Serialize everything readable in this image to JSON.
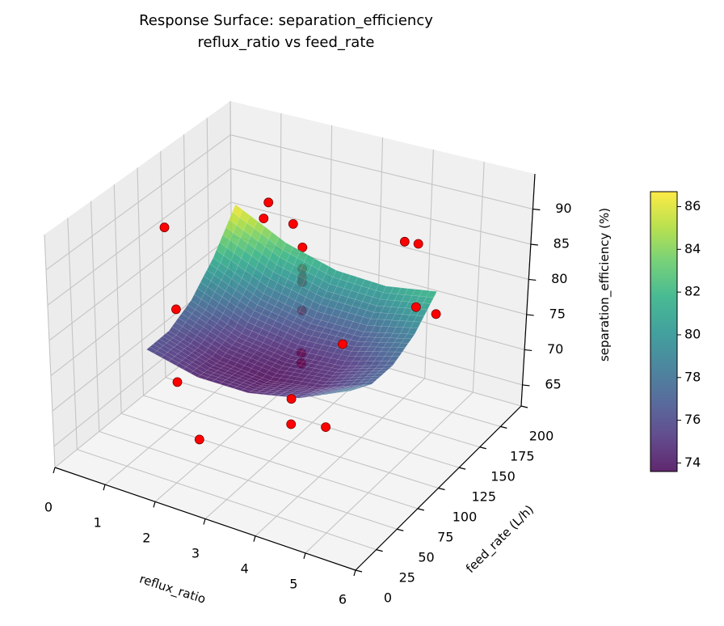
{
  "chart_data": {
    "type": "surface3d",
    "title": "Response Surface: separation_efficiency",
    "subtitle": "reflux_ratio vs feed_rate",
    "xlabel": "reflux_ratio",
    "ylabel": "feed_rate (L/h)",
    "zlabel": "separation_efficiency (%)",
    "xlim": [
      0,
      6
    ],
    "ylim": [
      0,
      200
    ],
    "zlim": [
      62,
      95
    ],
    "xticks": [
      "0",
      "1",
      "2",
      "3",
      "4",
      "5",
      "6"
    ],
    "yticks": [
      "0",
      "25",
      "50",
      "75",
      "100",
      "125",
      "150",
      "175",
      "200"
    ],
    "zticks": [
      "65",
      "70",
      "75",
      "80",
      "85",
      "90"
    ],
    "grid": true,
    "colormap": "viridis",
    "surface": {
      "x": [
        1,
        2,
        3,
        4,
        5
      ],
      "y": [
        50,
        75,
        100,
        125,
        150
      ],
      "z": [
        [
          76.0,
          74.3,
          74.3,
          75.8,
          79.0
        ],
        [
          76.1,
          74.0,
          73.4,
          74.5,
          77.2
        ],
        [
          77.9,
          75.3,
          74.3,
          74.9,
          77.1
        ],
        [
          81.5,
          78.4,
          76.9,
          77.0,
          78.7
        ],
        [
          86.7,
          83.1,
          81.1,
          80.8,
          82.0
        ]
      ]
    },
    "points": {
      "color": "#ff0000",
      "reflux_ratio": [
        0.5,
        0.7,
        0.7,
        2.2,
        3.0,
        3.0,
        4.2,
        4.0,
        2.0,
        3.0,
        4.0,
        4.6,
        4.6,
        5.0,
        1.2,
        1.8,
        1.8,
        1.8,
        1.8,
        1.8,
        1.8,
        1.8
      ],
      "feed_rate": [
        100,
        100,
        100,
        40,
        100,
        100,
        70,
        100,
        130,
        100,
        170,
        150,
        150,
        150,
        170,
        180,
        180,
        180,
        180,
        180,
        180,
        180
      ],
      "efficiency": [
        87.4,
        76.0,
        65.5,
        67.0,
        64.5,
        68.1,
        70.0,
        78.0,
        91.0,
        93.0,
        85.0,
        88.0,
        79.0,
        78.8,
        83.0,
        78.9,
        75.8,
        74.6,
        73.8,
        69.7,
        63.5,
        62.0
      ]
    },
    "colorbar": {
      "range": [
        73.6,
        86.7
      ],
      "ticks": [
        "74",
        "76",
        "78",
        "80",
        "82",
        "84",
        "86"
      ]
    }
  }
}
